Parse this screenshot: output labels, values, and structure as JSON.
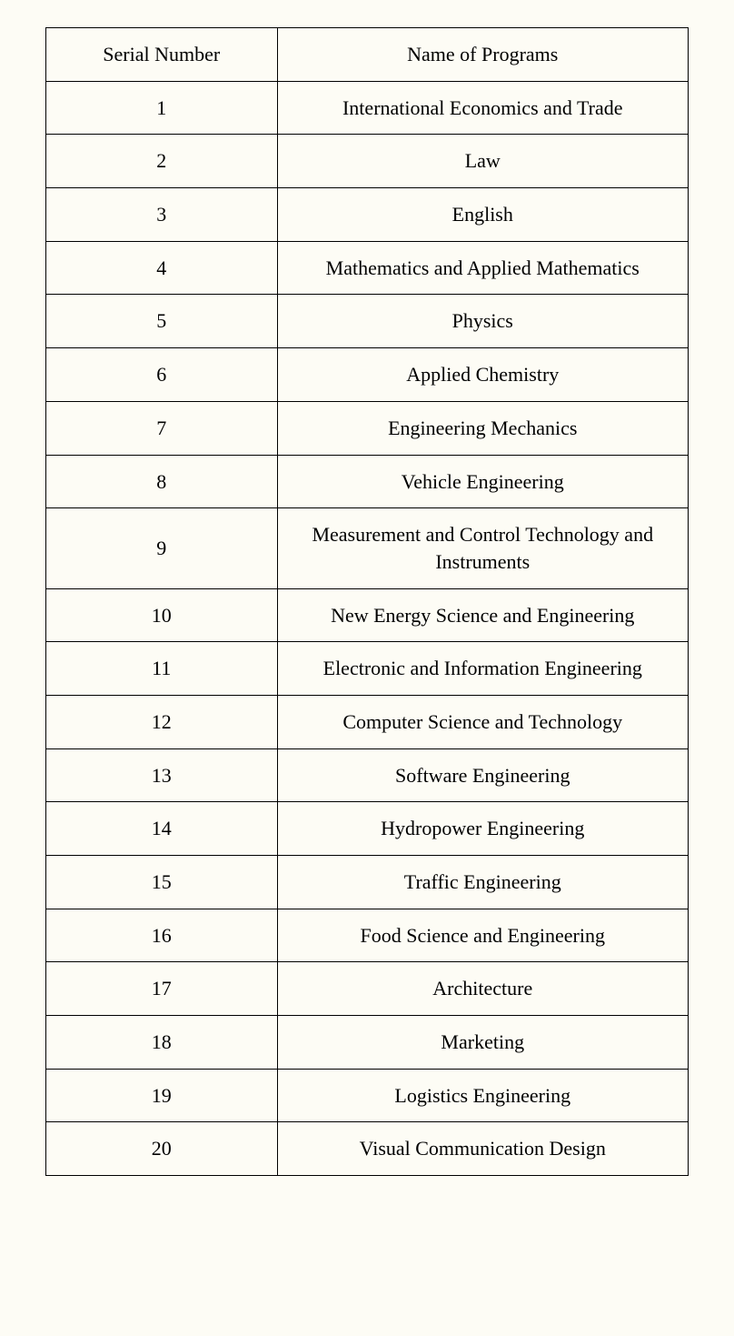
{
  "table": {
    "type": "table",
    "background_color": "#fdfcf5",
    "border_color": "#000000",
    "text_color": "#000000",
    "font_family": "Times New Roman",
    "header_fontsize": 22,
    "cell_fontsize": 22,
    "columns": [
      {
        "label": "Serial Number",
        "width_percent": 36,
        "align": "center"
      },
      {
        "label": "Name of Programs",
        "width_percent": 64,
        "align": "center"
      }
    ],
    "rows": [
      {
        "serial": "1",
        "program": "International Economics and Trade"
      },
      {
        "serial": "2",
        "program": "Law"
      },
      {
        "serial": "3",
        "program": "English"
      },
      {
        "serial": "4",
        "program": "Mathematics and Applied Mathematics"
      },
      {
        "serial": "5",
        "program": "Physics"
      },
      {
        "serial": "6",
        "program": "Applied Chemistry"
      },
      {
        "serial": "7",
        "program": "Engineering Mechanics"
      },
      {
        "serial": "8",
        "program": "Vehicle Engineering"
      },
      {
        "serial": "9",
        "program": "Measurement and Control Technology and Instruments"
      },
      {
        "serial": "10",
        "program": "New Energy Science and Engineering"
      },
      {
        "serial": "11",
        "program": "Electronic and Information Engineering"
      },
      {
        "serial": "12",
        "program": "Computer Science and Technology"
      },
      {
        "serial": "13",
        "program": "Software Engineering"
      },
      {
        "serial": "14",
        "program": "Hydropower Engineering"
      },
      {
        "serial": "15",
        "program": "Traffic Engineering"
      },
      {
        "serial": "16",
        "program": "Food Science and Engineering"
      },
      {
        "serial": "17",
        "program": "Architecture"
      },
      {
        "serial": "18",
        "program": "Marketing"
      },
      {
        "serial": "19",
        "program": "Logistics Engineering"
      },
      {
        "serial": "20",
        "program": "Visual Communication Design"
      }
    ]
  }
}
